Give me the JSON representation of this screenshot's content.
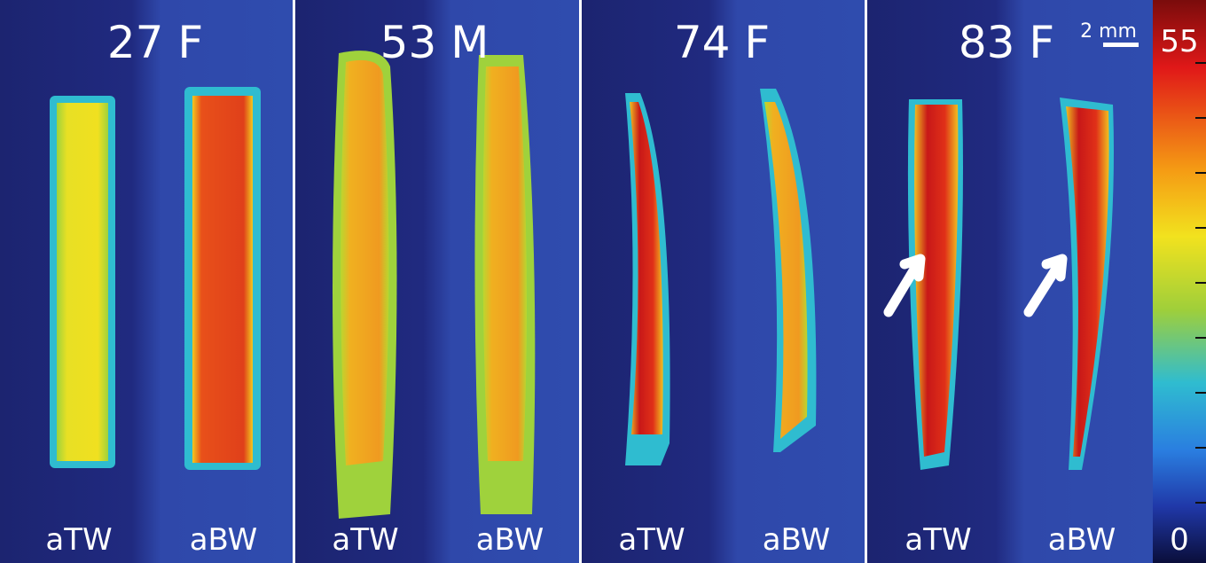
{
  "panels": [
    {
      "title": "27 F",
      "left_label": "aTW",
      "right_label": "aBW"
    },
    {
      "title": "53 M",
      "left_label": "aTW",
      "right_label": "aBW"
    },
    {
      "title": "74 F",
      "left_label": "aTW",
      "right_label": "aBW"
    },
    {
      "title": "83 F",
      "left_label": "aTW",
      "right_label": "aBW"
    }
  ],
  "scale_bar": "2 mm",
  "colorbar": {
    "max_label": "55",
    "min_label": "0"
  }
}
